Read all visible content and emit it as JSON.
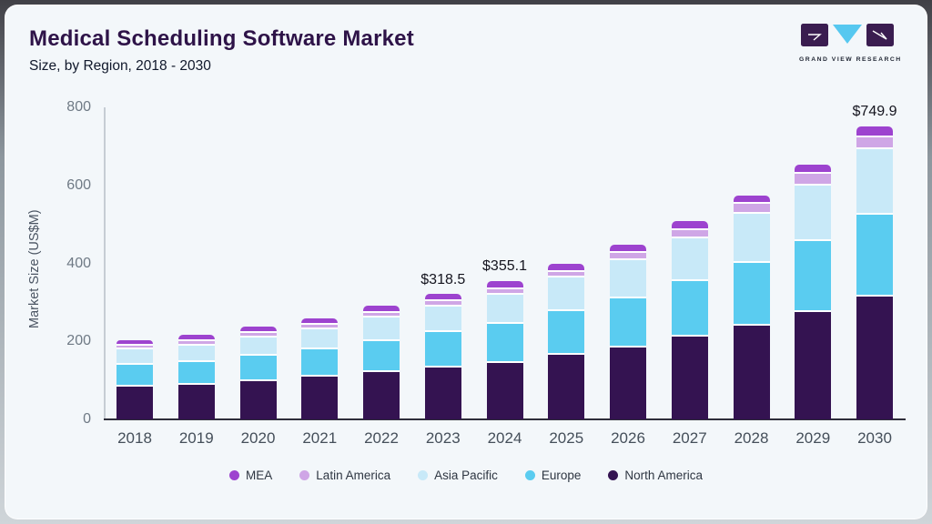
{
  "header": {
    "title": "Medical Scheduling Software Market",
    "subtitle": "Size, by Region, 2018 - 2030"
  },
  "logo": {
    "text": "GRAND VIEW RESEARCH",
    "mark_color": "#3a1d50",
    "triangle_color": "#56c8f0"
  },
  "chart_data": {
    "type": "bar",
    "stacked": true,
    "title": "Medical Scheduling Software Market",
    "subtitle": "Size, by Region, 2018 - 2030",
    "xlabel": "",
    "ylabel": "Market Size (US$M)",
    "ylim": [
      0,
      800
    ],
    "yticks": [
      0,
      200,
      400,
      600,
      800
    ],
    "grid": false,
    "legend_position": "bottom",
    "categories": [
      "2018",
      "2019",
      "2020",
      "2021",
      "2022",
      "2023",
      "2024",
      "2025",
      "2026",
      "2027",
      "2028",
      "2029",
      "2030"
    ],
    "series": [
      {
        "name": "North America",
        "color": "#341351",
        "values": [
          88,
          93,
          102,
          114,
          125,
          136.5,
          150,
          170,
          189,
          216,
          246,
          281,
          320
        ]
      },
      {
        "name": "Europe",
        "color": "#5accf0",
        "values": [
          56,
          58,
          66,
          71,
          79,
          90,
          101,
          111,
          126,
          143,
          161,
          182,
          209
        ]
      },
      {
        "name": "Asia Pacific",
        "color": "#c8e9f8",
        "values": [
          40,
          42,
          47,
          51,
          60,
          65.7,
          75,
          86,
          98,
          109,
          125,
          143,
          167
        ]
      },
      {
        "name": "Latin America",
        "color": "#cfa6e6",
        "values": [
          10,
          11,
          11,
          12,
          12,
          13,
          13,
          15,
          19,
          22,
          26,
          31,
          31
        ]
      },
      {
        "name": "MEA",
        "color": "#9d43cf",
        "values": [
          10,
          11,
          12,
          12,
          13,
          13.3,
          16.1,
          16,
          17,
          19,
          17,
          19,
          22.9
        ]
      }
    ],
    "totals_shown": [
      {
        "category": "2023",
        "label": "$318.5"
      },
      {
        "category": "2024",
        "label": "$355.1"
      },
      {
        "category": "2030",
        "label": "$749.9"
      }
    ],
    "legend_order": [
      "MEA",
      "Latin America",
      "Asia Pacific",
      "Europe",
      "North America"
    ]
  }
}
